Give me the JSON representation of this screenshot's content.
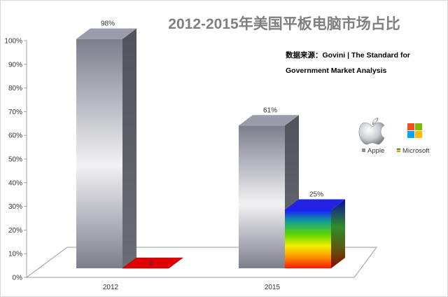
{
  "chart_data": {
    "type": "bar",
    "title": "2012-2015年美国平板电脑市场占比",
    "source_lines": [
      "数据来源：Govini | The Standard for",
      "Government Market Analysis"
    ],
    "categories": [
      "2012",
      "2015"
    ],
    "series": [
      {
        "name": "Apple",
        "values": [
          98,
          61
        ],
        "color": "#8a8c99"
      },
      {
        "name": "Microsoft",
        "values": [
          0,
          25
        ],
        "color": "#e00000"
      }
    ],
    "data_labels": [
      [
        "98%",
        "0"
      ],
      [
        "61%",
        "25%"
      ]
    ],
    "y_ticks": [
      "0%",
      "10%",
      "20%",
      "30%",
      "40%",
      "50%",
      "60%",
      "70%",
      "80%",
      "90%",
      "100%"
    ],
    "ylim": [
      0,
      100
    ],
    "grid": false,
    "legend_position": "right",
    "icons": [
      "apple-logo-icon",
      "microsoft-logo-icon"
    ]
  }
}
